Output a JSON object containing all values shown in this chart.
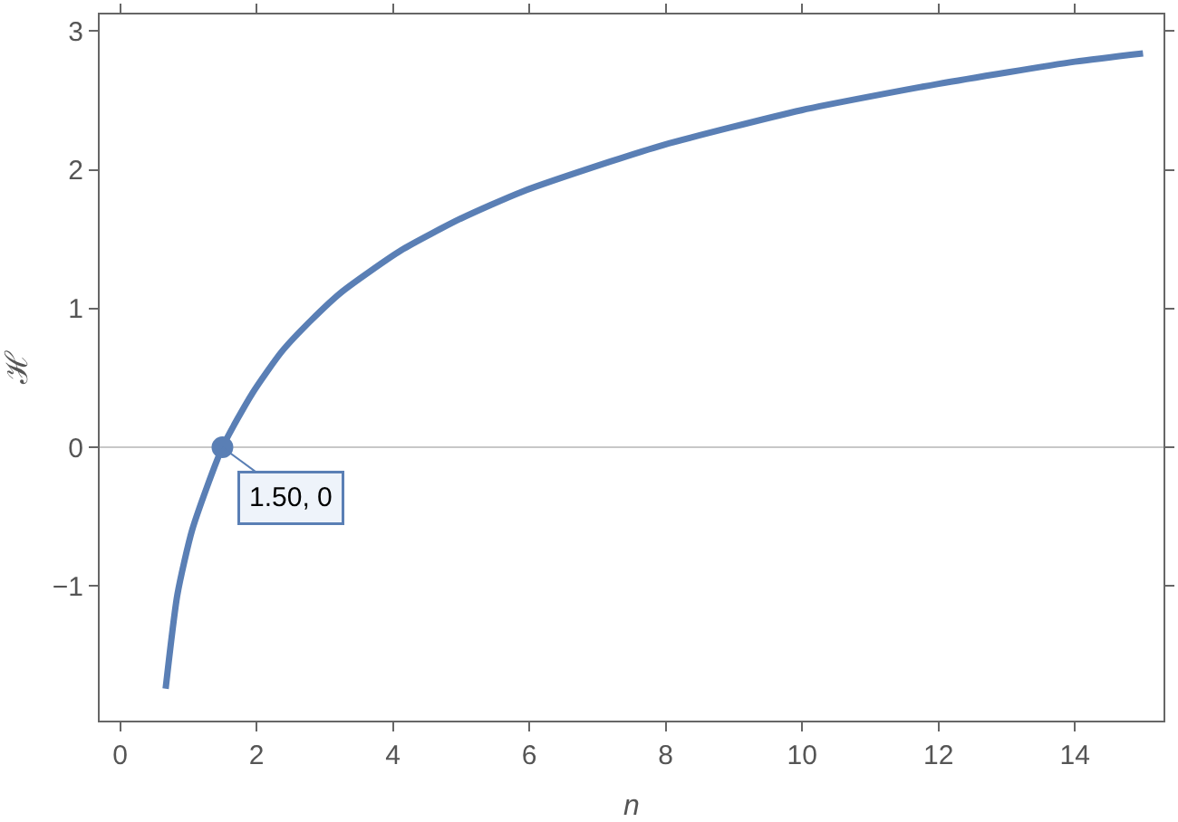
{
  "chart_data": {
    "type": "line",
    "xlabel": "n",
    "ylabel": "ℋ",
    "series": [
      {
        "color": "#5a7fb5",
        "x": [
          0.667,
          0.84,
          1.06,
          1.5,
          1.94,
          2.37,
          2.81,
          3.25,
          4.12,
          5.0,
          5.88,
          7.19,
          7.97,
          9.99,
          12.0,
          14.0,
          15.0
        ],
        "values": [
          -1.74,
          -1.06,
          -0.59,
          0,
          0.39,
          0.69,
          0.92,
          1.12,
          1.42,
          1.65,
          1.84,
          2.06,
          2.18,
          2.43,
          2.62,
          2.78,
          2.84
        ]
      },
      {
        "type": "scatter",
        "color": "#5a7fb5",
        "marker": "circle",
        "x": [
          1.5
        ],
        "values": [
          0
        ]
      }
    ],
    "annotations": [
      {
        "text": "1.50, 0",
        "x": 1.5,
        "y": 0
      }
    ],
    "ref_lines": [
      {
        "axis": "y",
        "value": 0,
        "color": "#c8c8c8"
      }
    ],
    "xlim": [
      -0.3,
      15.3
    ],
    "ylim": [
      -1.97,
      3.12
    ],
    "xticks": [
      0,
      2,
      4,
      6,
      8,
      10,
      12,
      14
    ],
    "yticks": [
      -1,
      0,
      1,
      2,
      3
    ],
    "grid": false
  }
}
